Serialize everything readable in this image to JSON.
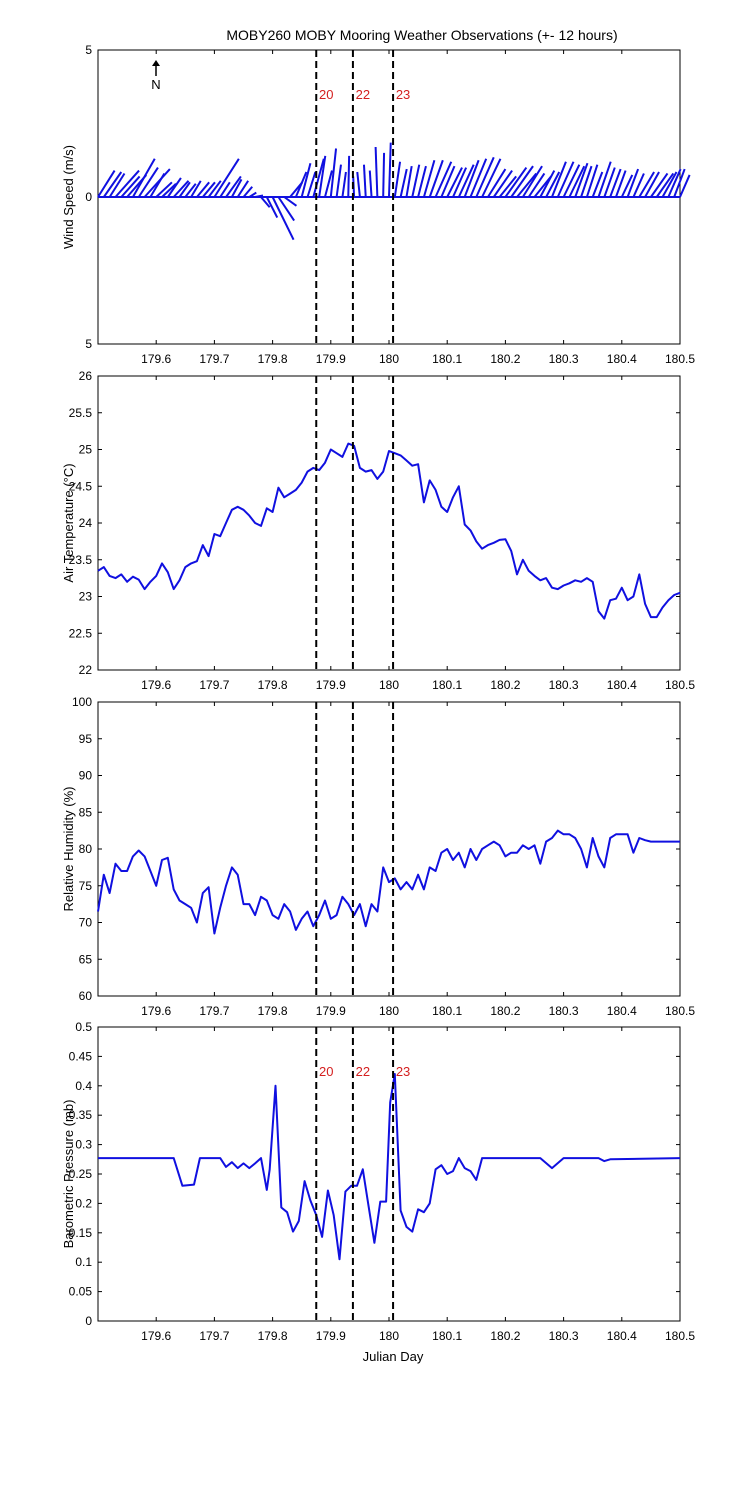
{
  "title": "MOBY260 MOBY Mooring Weather Observations (+- 12 hours)",
  "xlabel": "Julian Day",
  "north_label": "N",
  "colors": {
    "series": "#1010e0",
    "marker": "#d42020",
    "axis": "#000000"
  },
  "chart_data": [
    {
      "type": "line",
      "id": "wind",
      "ylabel": "Wind Speed (m/s)",
      "xlim": [
        179.5,
        180.5
      ],
      "ylim": [
        -5,
        5
      ],
      "x_ticks": [
        "179.6",
        "179.7",
        "179.8",
        "179.9",
        "180",
        "180.1",
        "180.2",
        "180.3",
        "180.4",
        "180.5"
      ],
      "y_ticks": [
        "5",
        "0",
        "5"
      ],
      "events": [
        {
          "x": 179.875,
          "label": "20"
        },
        {
          "x": 179.938,
          "label": "22"
        },
        {
          "x": 180.007,
          "label": "23"
        }
      ],
      "show_event_labels": true,
      "vectors": [
        [
          179.5,
          0.95,
          0.9
        ],
        [
          179.51,
          1.0,
          0.85
        ],
        [
          179.52,
          0.85,
          0.8
        ],
        [
          179.53,
          1.35,
          0.9
        ],
        [
          179.54,
          1.05,
          0.7
        ],
        [
          179.55,
          1.1,
          0.75
        ],
        [
          179.56,
          1.25,
          1.3
        ],
        [
          179.57,
          1.1,
          1.0
        ],
        [
          179.58,
          1.45,
          0.95
        ],
        [
          179.59,
          0.8,
          0.8
        ],
        [
          179.6,
          0.9,
          0.5
        ],
        [
          179.61,
          0.8,
          0.45
        ],
        [
          179.62,
          0.75,
          0.65
        ],
        [
          179.63,
          0.85,
          0.55
        ],
        [
          179.64,
          0.6,
          0.5
        ],
        [
          179.65,
          0.6,
          0.45
        ],
        [
          179.66,
          0.55,
          0.55
        ],
        [
          179.67,
          0.7,
          0.5
        ],
        [
          179.68,
          0.7,
          0.5
        ],
        [
          179.69,
          0.7,
          0.55
        ],
        [
          179.7,
          1.4,
          1.3
        ],
        [
          179.71,
          0.55,
          0.5
        ],
        [
          179.72,
          0.85,
          0.7
        ],
        [
          179.73,
          0.55,
          0.6
        ],
        [
          179.74,
          0.6,
          0.55
        ],
        [
          179.75,
          0.5,
          0.35
        ],
        [
          179.76,
          0.4,
          0.15
        ],
        [
          179.77,
          0.45,
          0.05
        ],
        [
          179.78,
          0.5,
          -0.35
        ],
        [
          179.79,
          0.6,
          -0.7
        ],
        [
          179.8,
          1.2,
          -1.45
        ],
        [
          179.81,
          0.9,
          -0.8
        ],
        [
          179.82,
          0.7,
          -0.3
        ],
        [
          179.83,
          0.7,
          0.5
        ],
        [
          179.84,
          0.6,
          0.85
        ],
        [
          179.85,
          0.5,
          1.15
        ],
        [
          179.86,
          0.45,
          0.85
        ],
        [
          179.87,
          0.6,
          1.3
        ],
        [
          179.88,
          0.35,
          1.4
        ],
        [
          179.89,
          0.4,
          0.9
        ],
        [
          179.9,
          0.3,
          1.65
        ],
        [
          179.91,
          0.25,
          1.1
        ],
        [
          179.92,
          0.2,
          0.85
        ],
        [
          179.93,
          0.05,
          1.4
        ],
        [
          179.94,
          -0.05,
          0.7
        ],
        [
          179.95,
          -0.15,
          0.85
        ],
        [
          179.96,
          -0.1,
          1.1
        ],
        [
          179.97,
          -0.1,
          0.9
        ],
        [
          179.98,
          -0.1,
          1.7
        ],
        [
          179.99,
          0.05,
          1.5
        ],
        [
          180.0,
          0.1,
          1.85
        ],
        [
          180.01,
          0.3,
          1.2
        ],
        [
          180.02,
          0.35,
          0.95
        ],
        [
          180.03,
          0.3,
          1.05
        ],
        [
          180.04,
          0.4,
          1.1
        ],
        [
          180.05,
          0.45,
          1.05
        ],
        [
          180.06,
          0.6,
          1.25
        ],
        [
          180.07,
          0.75,
          1.25
        ],
        [
          180.08,
          0.9,
          1.2
        ],
        [
          180.09,
          0.75,
          1.05
        ],
        [
          180.1,
          0.85,
          1.0
        ],
        [
          180.11,
          0.75,
          1.0
        ],
        [
          180.12,
          0.85,
          1.1
        ],
        [
          180.13,
          0.8,
          1.25
        ],
        [
          180.14,
          0.9,
          1.3
        ],
        [
          180.15,
          1.0,
          1.35
        ],
        [
          180.16,
          1.05,
          1.3
        ],
        [
          180.17,
          1.0,
          0.95
        ],
        [
          180.18,
          1.05,
          0.9
        ],
        [
          180.19,
          0.95,
          0.7
        ],
        [
          180.2,
          1.2,
          1.0
        ],
        [
          180.21,
          1.25,
          1.05
        ],
        [
          180.22,
          1.1,
          0.8
        ],
        [
          180.23,
          1.1,
          1.05
        ],
        [
          180.24,
          0.9,
          0.8
        ],
        [
          180.25,
          0.95,
          0.7
        ],
        [
          180.26,
          0.8,
          0.9
        ],
        [
          180.27,
          0.75,
          0.85
        ],
        [
          180.28,
          0.8,
          1.2
        ],
        [
          180.29,
          0.9,
          1.2
        ],
        [
          180.3,
          0.9,
          1.1
        ],
        [
          180.31,
          0.85,
          1.05
        ],
        [
          180.32,
          0.7,
          1.15
        ],
        [
          180.33,
          0.6,
          1.05
        ],
        [
          180.34,
          0.6,
          1.1
        ],
        [
          180.35,
          0.55,
          0.85
        ],
        [
          180.36,
          0.7,
          1.2
        ],
        [
          180.37,
          0.6,
          1.0
        ],
        [
          180.38,
          0.6,
          0.95
        ],
        [
          180.39,
          0.55,
          0.9
        ],
        [
          180.4,
          0.6,
          0.75
        ],
        [
          180.41,
          0.6,
          0.95
        ],
        [
          180.42,
          0.6,
          0.8
        ],
        [
          180.43,
          0.85,
          0.85
        ],
        [
          180.44,
          0.8,
          0.85
        ],
        [
          180.45,
          0.95,
          0.8
        ],
        [
          180.46,
          0.95,
          0.8
        ],
        [
          180.47,
          0.8,
          0.85
        ],
        [
          180.48,
          0.7,
          0.95
        ],
        [
          180.49,
          0.6,
          0.95
        ],
        [
          180.5,
          0.55,
          0.75
        ]
      ]
    },
    {
      "type": "line",
      "id": "airtemp",
      "ylabel": "Air Temperature (°C)",
      "xlim": [
        179.5,
        180.5
      ],
      "ylim": [
        22,
        26
      ],
      "x_ticks": [
        "179.6",
        "179.7",
        "179.8",
        "179.9",
        "180",
        "180.1",
        "180.2",
        "180.3",
        "180.4",
        "180.5"
      ],
      "y_ticks": [
        "22",
        "22.5",
        "23",
        "23.5",
        "24",
        "24.5",
        "25",
        "25.5",
        "26"
      ],
      "events": [
        {
          "x": 179.875,
          "label": "20"
        },
        {
          "x": 179.938,
          "label": "22"
        },
        {
          "x": 180.007,
          "label": "23"
        }
      ],
      "show_event_labels": false,
      "x": [
        179.5,
        179.51,
        179.52,
        179.53,
        179.54,
        179.55,
        179.56,
        179.57,
        179.58,
        179.59,
        179.6,
        179.61,
        179.62,
        179.63,
        179.64,
        179.65,
        179.66,
        179.67,
        179.68,
        179.69,
        179.7,
        179.71,
        179.72,
        179.73,
        179.74,
        179.75,
        179.76,
        179.77,
        179.78,
        179.79,
        179.8,
        179.81,
        179.82,
        179.83,
        179.84,
        179.85,
        179.86,
        179.87,
        179.88,
        179.89,
        179.9,
        179.91,
        179.92,
        179.93,
        179.94,
        179.95,
        179.96,
        179.97,
        179.98,
        179.99,
        180.0,
        180.01,
        180.02,
        180.03,
        180.04,
        180.05,
        180.06,
        180.07,
        180.08,
        180.09,
        180.1,
        180.11,
        180.12,
        180.13,
        180.14,
        180.15,
        180.16,
        180.17,
        180.18,
        180.19,
        180.2,
        180.21,
        180.22,
        180.23,
        180.24,
        180.25,
        180.26,
        180.27,
        180.28,
        180.29,
        180.3,
        180.31,
        180.32,
        180.33,
        180.34,
        180.35,
        180.36,
        180.37,
        180.38,
        180.39,
        180.4,
        180.41,
        180.42,
        180.43,
        180.44,
        180.45,
        180.46,
        180.47,
        180.48,
        180.49,
        180.5
      ],
      "y": [
        23.35,
        23.4,
        23.28,
        23.25,
        23.3,
        23.2,
        23.27,
        23.23,
        23.1,
        23.2,
        23.28,
        23.45,
        23.33,
        23.1,
        23.22,
        23.4,
        23.45,
        23.48,
        23.7,
        23.55,
        23.85,
        23.82,
        24.0,
        24.18,
        24.22,
        24.18,
        24.1,
        24.0,
        23.96,
        24.2,
        24.15,
        24.48,
        24.35,
        24.4,
        24.45,
        24.55,
        24.7,
        24.75,
        24.72,
        24.82,
        25.0,
        24.95,
        24.9,
        25.08,
        25.05,
        24.75,
        24.7,
        24.72,
        24.6,
        24.7,
        24.98,
        24.95,
        24.92,
        24.85,
        24.78,
        24.8,
        24.28,
        24.58,
        24.45,
        24.22,
        24.15,
        24.35,
        24.5,
        23.98,
        23.9,
        23.75,
        23.65,
        23.7,
        23.73,
        23.77,
        23.78,
        23.62,
        23.3,
        23.5,
        23.35,
        23.28,
        23.22,
        23.25,
        23.12,
        23.1,
        23.15,
        23.18,
        23.22,
        23.2,
        23.25,
        23.2,
        22.8,
        22.7,
        22.95,
        22.97,
        23.12,
        22.95,
        23.0,
        23.3,
        22.9,
        22.72,
        22.72,
        22.85,
        22.95,
        23.02,
        23.05
      ]
    },
    {
      "type": "line",
      "id": "humidity",
      "ylabel": "Relative Humidity (%)",
      "xlim": [
        179.5,
        180.5
      ],
      "ylim": [
        60,
        100
      ],
      "x_ticks": [
        "179.6",
        "179.7",
        "179.8",
        "179.9",
        "180",
        "180.1",
        "180.2",
        "180.3",
        "180.4",
        "180.5"
      ],
      "y_ticks": [
        "60",
        "65",
        "70",
        "75",
        "80",
        "85",
        "90",
        "95",
        "100"
      ],
      "events": [
        {
          "x": 179.875,
          "label": "20"
        },
        {
          "x": 179.938,
          "label": "22"
        },
        {
          "x": 180.007,
          "label": "23"
        }
      ],
      "show_event_labels": false,
      "x": [
        179.5,
        179.51,
        179.52,
        179.53,
        179.54,
        179.55,
        179.56,
        179.57,
        179.58,
        179.59,
        179.6,
        179.61,
        179.62,
        179.63,
        179.64,
        179.65,
        179.66,
        179.67,
        179.68,
        179.69,
        179.7,
        179.71,
        179.72,
        179.73,
        179.74,
        179.75,
        179.76,
        179.77,
        179.78,
        179.79,
        179.8,
        179.81,
        179.82,
        179.83,
        179.84,
        179.85,
        179.86,
        179.87,
        179.88,
        179.89,
        179.9,
        179.91,
        179.92,
        179.93,
        179.94,
        179.95,
        179.96,
        179.97,
        179.98,
        179.99,
        180.0,
        180.01,
        180.02,
        180.03,
        180.04,
        180.05,
        180.06,
        180.07,
        180.08,
        180.09,
        180.1,
        180.11,
        180.12,
        180.13,
        180.14,
        180.15,
        180.16,
        180.17,
        180.18,
        180.19,
        180.2,
        180.21,
        180.22,
        180.23,
        180.24,
        180.25,
        180.26,
        180.27,
        180.28,
        180.29,
        180.3,
        180.31,
        180.32,
        180.33,
        180.34,
        180.35,
        180.36,
        180.37,
        180.38,
        180.39,
        180.4,
        180.41,
        180.42,
        180.43,
        180.44,
        180.45,
        180.46,
        180.47,
        180.48,
        180.49,
        180.5
      ],
      "y": [
        71.5,
        76.5,
        74.0,
        78.0,
        77.0,
        77.0,
        79.0,
        79.8,
        79.0,
        77.0,
        75.0,
        78.5,
        78.8,
        74.5,
        73.0,
        72.5,
        72.0,
        70.0,
        74.0,
        74.8,
        68.5,
        72.0,
        75.0,
        77.5,
        76.5,
        72.5,
        72.5,
        71.0,
        73.5,
        73.0,
        71.0,
        70.5,
        72.5,
        71.5,
        69.0,
        70.5,
        71.5,
        69.5,
        71.0,
        73.0,
        70.5,
        71.0,
        73.5,
        72.5,
        71.0,
        72.5,
        69.5,
        72.5,
        71.5,
        77.5,
        75.5,
        76.0,
        74.5,
        75.5,
        74.5,
        76.5,
        74.5,
        77.5,
        77.0,
        79.5,
        80.0,
        78.5,
        79.5,
        77.5,
        80.0,
        78.5,
        80.0,
        80.5,
        81.0,
        80.5,
        79.0,
        79.5,
        79.5,
        80.5,
        80.0,
        80.5,
        78.0,
        81.0,
        81.5,
        82.5,
        82.0,
        82.0,
        81.5,
        80.0,
        77.5,
        81.5,
        79.0,
        77.5,
        81.5,
        82.0,
        82.0,
        82.0,
        79.5,
        81.5,
        81.2,
        81.0,
        81.0,
        81.0,
        81.0,
        81.0,
        81.0
      ]
    },
    {
      "type": "line",
      "id": "pressure",
      "ylabel": "Barometric Pressure (mb)",
      "xlim": [
        179.5,
        180.5
      ],
      "ylim": [
        0,
        0.5
      ],
      "x_ticks": [
        "179.6",
        "179.7",
        "179.8",
        "179.9",
        "180",
        "180.1",
        "180.2",
        "180.3",
        "180.4",
        "180.5"
      ],
      "y_ticks": [
        "0",
        "0.05",
        "0.1",
        "0.15",
        "0.2",
        "0.25",
        "0.3",
        "0.35",
        "0.4",
        "0.45",
        "0.5"
      ],
      "events": [
        {
          "x": 179.875,
          "label": "20"
        },
        {
          "x": 179.938,
          "label": "22"
        },
        {
          "x": 180.007,
          "label": "23"
        }
      ],
      "show_event_labels": true,
      "x": [
        179.5,
        179.63,
        179.645,
        179.665,
        179.675,
        179.7,
        179.71,
        179.72,
        179.73,
        179.74,
        179.75,
        179.76,
        179.77,
        179.78,
        179.79,
        179.795,
        179.805,
        179.815,
        179.825,
        179.835,
        179.845,
        179.855,
        179.865,
        179.875,
        179.885,
        179.895,
        179.905,
        179.915,
        179.925,
        179.935,
        179.945,
        179.955,
        179.965,
        179.975,
        179.985,
        179.995,
        180.002,
        180.01,
        180.02,
        180.03,
        180.04,
        180.05,
        180.06,
        180.07,
        180.08,
        180.09,
        180.1,
        180.11,
        180.12,
        180.13,
        180.14,
        180.15,
        180.16,
        180.17,
        180.18,
        180.26,
        180.28,
        180.3,
        180.36,
        180.37,
        180.38,
        180.5
      ],
      "y": [
        0.277,
        0.277,
        0.23,
        0.232,
        0.277,
        0.277,
        0.277,
        0.262,
        0.27,
        0.26,
        0.268,
        0.26,
        0.268,
        0.277,
        0.223,
        0.258,
        0.4,
        0.193,
        0.185,
        0.152,
        0.17,
        0.238,
        0.205,
        0.18,
        0.143,
        0.222,
        0.18,
        0.105,
        0.22,
        0.23,
        0.23,
        0.258,
        0.195,
        0.133,
        0.203,
        0.203,
        0.372,
        0.42,
        0.188,
        0.16,
        0.152,
        0.19,
        0.185,
        0.2,
        0.258,
        0.265,
        0.25,
        0.255,
        0.277,
        0.26,
        0.255,
        0.24,
        0.277,
        0.277,
        0.277,
        0.277,
        0.26,
        0.277,
        0.277,
        0.272,
        0.275,
        0.277
      ]
    }
  ]
}
